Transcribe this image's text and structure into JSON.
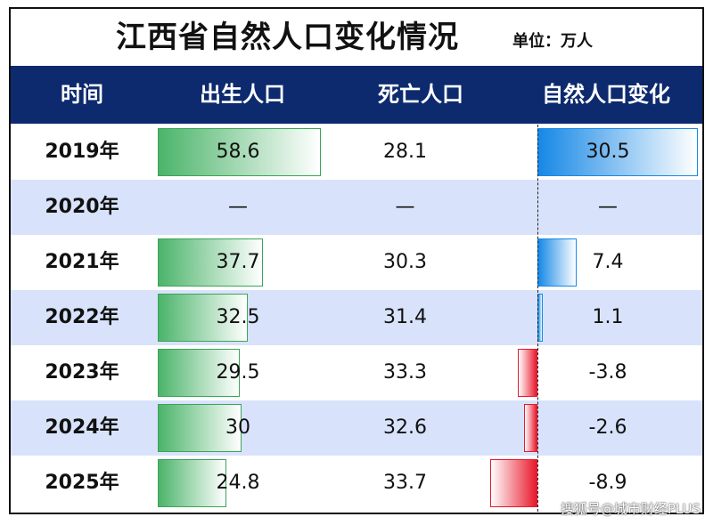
{
  "title": "江西省自然人口变化情况",
  "unit": "单位：万人",
  "headers": [
    "时间",
    "出生人口",
    "死亡人口",
    "自然人口变化"
  ],
  "watermark": "搜狐号@城市财经PLUS",
  "colors": {
    "header_bg": "#0d2a6e",
    "births_bar": "#4bb46a",
    "positive_bar": "#1688e6",
    "negative_bar": "#e8192c",
    "alt_row": "#d8e3fb"
  },
  "chart_data": {
    "type": "table",
    "title": "江西省自然人口变化情况",
    "unit": "万人",
    "columns": [
      "时间",
      "出生人口",
      "死亡人口",
      "自然人口变化"
    ],
    "rows": [
      {
        "year": "2019年",
        "births": 58.6,
        "deaths": 28.1,
        "change": 30.5,
        "births_label": "58.6",
        "deaths_label": "28.1",
        "change_label": "30.5"
      },
      {
        "year": "2020年",
        "births": null,
        "deaths": null,
        "change": null,
        "births_label": "—",
        "deaths_label": "—",
        "change_label": "—"
      },
      {
        "year": "2021年",
        "births": 37.7,
        "deaths": 30.3,
        "change": 7.4,
        "births_label": "37.7",
        "deaths_label": "30.3",
        "change_label": "7.4"
      },
      {
        "year": "2022年",
        "births": 32.5,
        "deaths": 31.4,
        "change": 1.1,
        "births_label": "32.5",
        "deaths_label": "31.4",
        "change_label": "1.1"
      },
      {
        "year": "2023年",
        "births": 29.5,
        "deaths": 33.3,
        "change": -3.8,
        "births_label": "29.5",
        "deaths_label": "33.3",
        "change_label": "-3.8"
      },
      {
        "year": "2024年",
        "births": 30,
        "deaths": 32.6,
        "change": -2.6,
        "births_label": "30",
        "deaths_label": "32.6",
        "change_label": "-2.6"
      },
      {
        "year": "2025年",
        "births": 24.8,
        "deaths": 33.7,
        "change": -8.9,
        "births_label": "24.8",
        "deaths_label": "33.7",
        "change_label": "-8.9"
      }
    ]
  }
}
